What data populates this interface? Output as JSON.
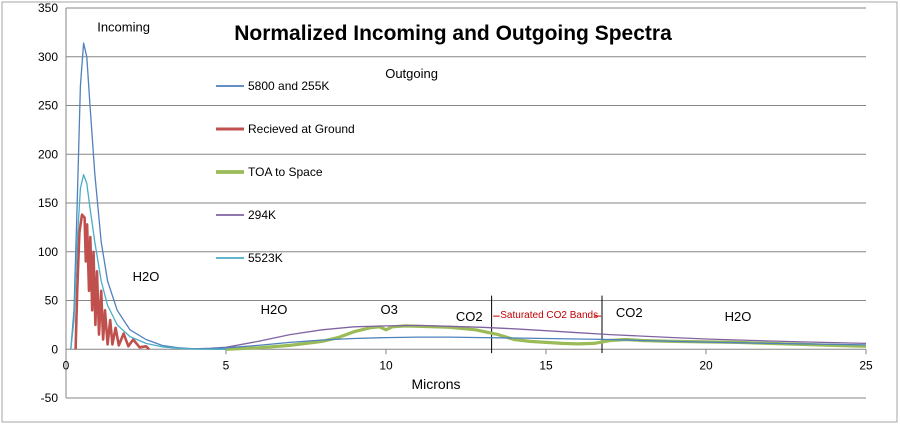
{
  "chart_data": {
    "type": "line",
    "title": "Normalized Incoming and Outgoing  Spectra",
    "xlabel": "Microns",
    "ylabel": "",
    "xlim": [
      0,
      25
    ],
    "ylim": [
      -50,
      350
    ],
    "x_ticks": [
      "0",
      "5",
      "10",
      "15",
      "20",
      "25"
    ],
    "y_ticks": [
      "-50",
      "0",
      "50",
      "100",
      "150",
      "200",
      "250",
      "300",
      "350"
    ],
    "grid": "horizontal",
    "legend_position": "left-inside",
    "colors": {
      "s5800_255": "#4f81bd",
      "ground": "#c0504d",
      "toa": "#9bbb59",
      "k294": "#8064a2",
      "k5523": "#4bacc6",
      "grid": "#868686",
      "annotation": "#c00000"
    },
    "series": [
      {
        "name": "5800 and 255K",
        "color_key": "s5800_255",
        "points": [
          [
            0.15,
            0
          ],
          [
            0.25,
            40
          ],
          [
            0.35,
            150
          ],
          [
            0.45,
            270
          ],
          [
            0.55,
            314
          ],
          [
            0.65,
            300
          ],
          [
            0.75,
            250
          ],
          [
            0.9,
            180
          ],
          [
            1.1,
            110
          ],
          [
            1.3,
            70
          ],
          [
            1.6,
            40
          ],
          [
            2.0,
            20
          ],
          [
            2.5,
            10
          ],
          [
            3.0,
            4
          ],
          [
            3.5,
            1.5
          ],
          [
            4.0,
            0.5
          ],
          [
            4.5,
            0.6
          ],
          [
            5.0,
            1.5
          ],
          [
            6.0,
            4
          ],
          [
            7.0,
            7
          ],
          [
            8.0,
            9.5
          ],
          [
            9.0,
            11
          ],
          [
            10.0,
            12
          ],
          [
            11.0,
            12.5
          ],
          [
            12.0,
            12.5
          ],
          [
            13.0,
            12
          ],
          [
            14.0,
            11.5
          ],
          [
            15.0,
            11
          ],
          [
            16.0,
            10.5
          ],
          [
            17.0,
            10
          ],
          [
            18.0,
            9
          ],
          [
            19.0,
            8
          ],
          [
            20.0,
            7.3
          ],
          [
            21.0,
            6.7
          ],
          [
            22.0,
            6
          ],
          [
            23.0,
            5.5
          ],
          [
            24.0,
            5
          ],
          [
            25.0,
            4.5
          ]
        ]
      },
      {
        "name": "Recieved at Ground",
        "color_key": "ground",
        "points": [
          [
            0.3,
            0
          ],
          [
            0.35,
            60
          ],
          [
            0.42,
            120
          ],
          [
            0.5,
            138
          ],
          [
            0.58,
            135
          ],
          [
            0.62,
            90
          ],
          [
            0.66,
            128
          ],
          [
            0.72,
            60
          ],
          [
            0.76,
            115
          ],
          [
            0.82,
            40
          ],
          [
            0.86,
            100
          ],
          [
            0.92,
            25
          ],
          [
            0.97,
            80
          ],
          [
            1.03,
            15
          ],
          [
            1.1,
            60
          ],
          [
            1.16,
            10
          ],
          [
            1.22,
            40
          ],
          [
            1.3,
            5
          ],
          [
            1.38,
            30
          ],
          [
            1.45,
            5
          ],
          [
            1.55,
            22
          ],
          [
            1.65,
            4
          ],
          [
            1.8,
            16
          ],
          [
            1.95,
            3
          ],
          [
            2.1,
            10
          ],
          [
            2.3,
            2
          ],
          [
            2.5,
            3
          ],
          [
            2.6,
            0
          ]
        ]
      },
      {
        "name": "TOA to Space",
        "color_key": "toa",
        "points": [
          [
            5.0,
            0
          ],
          [
            6.0,
            1.5
          ],
          [
            7.0,
            4
          ],
          [
            7.5,
            6
          ],
          [
            8.0,
            8
          ],
          [
            8.5,
            12
          ],
          [
            9.0,
            18
          ],
          [
            9.5,
            22
          ],
          [
            9.8,
            23
          ],
          [
            10.0,
            20
          ],
          [
            10.2,
            23
          ],
          [
            10.6,
            24
          ],
          [
            11.0,
            23.5
          ],
          [
            12.0,
            22.5
          ],
          [
            12.8,
            20
          ],
          [
            13.5,
            15
          ],
          [
            14.0,
            10
          ],
          [
            14.5,
            8
          ],
          [
            15.0,
            7
          ],
          [
            15.5,
            6
          ],
          [
            16.0,
            5.5
          ],
          [
            16.5,
            6
          ],
          [
            17.0,
            9
          ],
          [
            17.5,
            10
          ],
          [
            18.0,
            9
          ],
          [
            19.0,
            8
          ],
          [
            20.0,
            7.5
          ],
          [
            21.0,
            7
          ],
          [
            22.0,
            6
          ],
          [
            23.0,
            5
          ],
          [
            24.0,
            4
          ],
          [
            25.0,
            3
          ]
        ]
      },
      {
        "name": "294K",
        "color_key": "k294",
        "points": [
          [
            4.0,
            0.5
          ],
          [
            4.5,
            1
          ],
          [
            5.0,
            2
          ],
          [
            6.0,
            8
          ],
          [
            7.0,
            15
          ],
          [
            8.0,
            20
          ],
          [
            9.0,
            23
          ],
          [
            10.0,
            24
          ],
          [
            11.0,
            24.5
          ],
          [
            12.0,
            23.5
          ],
          [
            13.0,
            22.5
          ],
          [
            14.0,
            21
          ],
          [
            15.0,
            19
          ],
          [
            16.0,
            17
          ],
          [
            17.0,
            15
          ],
          [
            18.0,
            13.5
          ],
          [
            19.0,
            12
          ],
          [
            20.0,
            10.5
          ],
          [
            21.0,
            9.5
          ],
          [
            22.0,
            8.5
          ],
          [
            23.0,
            7.5
          ],
          [
            24.0,
            6.8
          ],
          [
            25.0,
            6
          ]
        ]
      },
      {
        "name": "5523K",
        "color_key": "k5523",
        "points": [
          [
            0.15,
            0
          ],
          [
            0.25,
            30
          ],
          [
            0.35,
            110
          ],
          [
            0.45,
            165
          ],
          [
            0.55,
            179
          ],
          [
            0.65,
            170
          ],
          [
            0.75,
            145
          ],
          [
            0.9,
            110
          ],
          [
            1.1,
            70
          ],
          [
            1.3,
            45
          ],
          [
            1.6,
            25
          ],
          [
            2.0,
            13
          ],
          [
            2.5,
            6
          ],
          [
            3.0,
            2.5
          ],
          [
            3.5,
            1
          ],
          [
            4.0,
            0.3
          ],
          [
            5.0,
            0
          ]
        ]
      }
    ],
    "annotations": [
      {
        "text": "Incoming",
        "x": 1.8,
        "y": 326,
        "anchor": "middle",
        "color_key": null
      },
      {
        "text": "Outgoing",
        "x": 10.8,
        "y": 278,
        "anchor": "middle",
        "color_key": null
      },
      {
        "text": "H2O",
        "x": 2.5,
        "y": 70,
        "anchor": "middle",
        "color_key": null
      },
      {
        "text": "H2O",
        "x": 6.5,
        "y": 36,
        "anchor": "middle",
        "color_key": null
      },
      {
        "text": "O3",
        "x": 10.1,
        "y": 36,
        "anchor": "middle",
        "color_key": null
      },
      {
        "text": "CO2",
        "x": 12.6,
        "y": 29,
        "anchor": "middle",
        "color_key": null
      },
      {
        "text": "Saturated CO2 Bands",
        "x": 15.1,
        "y": 32,
        "anchor": "middle",
        "color_key": "annotation"
      },
      {
        "text": "CO2",
        "x": 17.6,
        "y": 33,
        "anchor": "middle",
        "color_key": null
      },
      {
        "text": "H2O",
        "x": 21.0,
        "y": 29,
        "anchor": "middle",
        "color_key": null
      }
    ],
    "vertical_markers": [
      13.3,
      16.75
    ]
  }
}
